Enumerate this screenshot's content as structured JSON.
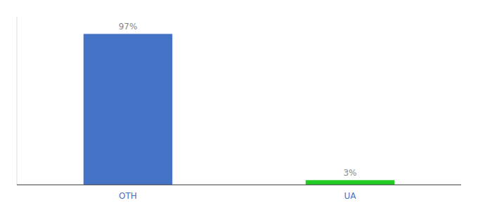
{
  "chart_data": {
    "type": "bar",
    "categories": [
      "OTH",
      "UA"
    ],
    "values": [
      97,
      3
    ],
    "value_labels": [
      "97%",
      "3%"
    ],
    "colors": [
      "#4472c4",
      "#22cc22"
    ],
    "ylim": [
      0,
      108
    ],
    "data_labels": true,
    "tick_labels": "x"
  }
}
